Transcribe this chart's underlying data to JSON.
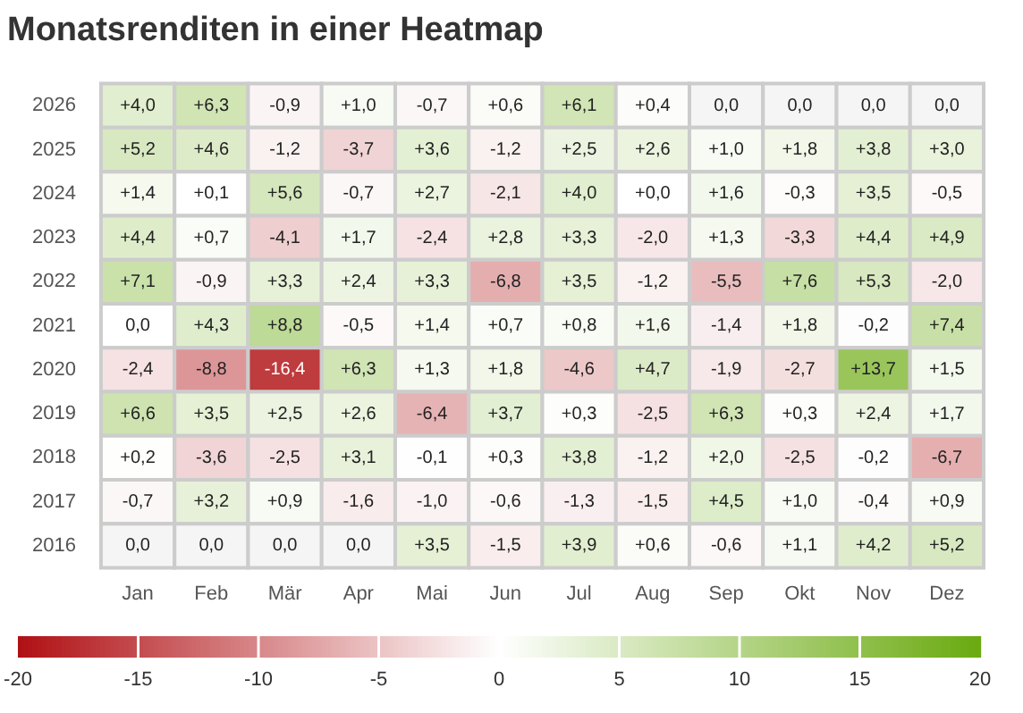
{
  "chart_data": {
    "type": "heatmap",
    "title": "Monatsrenditen in einer Heatmap",
    "categories": [
      "Jan",
      "Feb",
      "Mär",
      "Apr",
      "Mai",
      "Jun",
      "Jul",
      "Aug",
      "Sep",
      "Okt",
      "Nov",
      "Dez"
    ],
    "y_categories": [
      "2026",
      "2025",
      "2024",
      "2023",
      "2022",
      "2021",
      "2020",
      "2019",
      "2018",
      "2017",
      "2016"
    ],
    "cells": [
      [
        4.0,
        6.3,
        -0.9,
        1.0,
        -0.7,
        0.6,
        6.1,
        0.4,
        null,
        null,
        null,
        null
      ],
      [
        5.2,
        4.6,
        -1.2,
        -3.7,
        3.6,
        -1.2,
        2.5,
        2.6,
        1.0,
        1.8,
        3.8,
        3.0
      ],
      [
        1.4,
        0.1,
        5.6,
        -0.7,
        2.7,
        -2.1,
        4.0,
        0.0,
        1.6,
        -0.3,
        3.5,
        -0.5
      ],
      [
        4.4,
        0.7,
        -4.1,
        1.7,
        -2.4,
        2.8,
        3.3,
        -2.0,
        1.3,
        -3.3,
        4.4,
        4.9
      ],
      [
        7.1,
        -0.9,
        3.3,
        2.4,
        3.3,
        -6.8,
        3.5,
        -1.2,
        -5.5,
        7.6,
        5.3,
        -2.0
      ],
      [
        0.0,
        4.3,
        8.8,
        -0.5,
        1.4,
        0.7,
        0.8,
        1.6,
        -1.4,
        1.8,
        -0.2,
        7.4
      ],
      [
        -2.4,
        -8.8,
        -16.4,
        6.3,
        1.3,
        1.8,
        -4.6,
        4.7,
        -1.9,
        -2.7,
        13.7,
        1.5
      ],
      [
        6.6,
        3.5,
        2.5,
        2.6,
        -6.4,
        3.7,
        0.3,
        -2.5,
        6.3,
        0.3,
        2.4,
        1.7
      ],
      [
        0.2,
        -3.6,
        -2.5,
        3.1,
        -0.1,
        0.3,
        3.8,
        -1.2,
        2.0,
        -2.5,
        -0.2,
        -6.7
      ],
      [
        -0.7,
        3.2,
        0.9,
        -1.6,
        -1.0,
        -0.6,
        -1.3,
        -1.5,
        4.5,
        1.0,
        -0.4,
        0.9
      ],
      [
        null,
        null,
        null,
        null,
        3.5,
        -1.5,
        3.9,
        0.6,
        -0.6,
        1.1,
        4.2,
        5.2
      ]
    ],
    "cell_labels": [
      [
        "+4,0",
        "+6,3",
        "-0,9",
        "+1,0",
        "-0,7",
        "+0,6",
        "+6,1",
        "+0,4",
        "0,0",
        "0,0",
        "0,0",
        "0,0"
      ],
      [
        "+5,2",
        "+4,6",
        "-1,2",
        "-3,7",
        "+3,6",
        "-1,2",
        "+2,5",
        "+2,6",
        "+1,0",
        "+1,8",
        "+3,8",
        "+3,0"
      ],
      [
        "+1,4",
        "+0,1",
        "+5,6",
        "-0,7",
        "+2,7",
        "-2,1",
        "+4,0",
        "+0,0",
        "+1,6",
        "-0,3",
        "+3,5",
        "-0,5"
      ],
      [
        "+4,4",
        "+0,7",
        "-4,1",
        "+1,7",
        "-2,4",
        "+2,8",
        "+3,3",
        "-2,0",
        "+1,3",
        "-3,3",
        "+4,4",
        "+4,9"
      ],
      [
        "+7,1",
        "-0,9",
        "+3,3",
        "+2,4",
        "+3,3",
        "-6,8",
        "+3,5",
        "-1,2",
        "-5,5",
        "+7,6",
        "+5,3",
        "-2,0"
      ],
      [
        "0,0",
        "+4,3",
        "+8,8",
        "-0,5",
        "+1,4",
        "+0,7",
        "+0,8",
        "+1,6",
        "-1,4",
        "+1,8",
        "-0,2",
        "+7,4"
      ],
      [
        "-2,4",
        "-8,8",
        "-16,4",
        "+6,3",
        "+1,3",
        "+1,8",
        "-4,6",
        "+4,7",
        "-1,9",
        "-2,7",
        "+13,7",
        "+1,5"
      ],
      [
        "+6,6",
        "+3,5",
        "+2,5",
        "+2,6",
        "-6,4",
        "+3,7",
        "+0,3",
        "-2,5",
        "+6,3",
        "+0,3",
        "+2,4",
        "+1,7"
      ],
      [
        "+0,2",
        "-3,6",
        "-2,5",
        "+3,1",
        "-0,1",
        "+0,3",
        "+3,8",
        "-1,2",
        "+2,0",
        "-2,5",
        "-0,2",
        "-6,7"
      ],
      [
        "-0,7",
        "+3,2",
        "+0,9",
        "-1,6",
        "-1,0",
        "-0,6",
        "-1,3",
        "-1,5",
        "+4,5",
        "+1,0",
        "-0,4",
        "+0,9"
      ],
      [
        "0,0",
        "0,0",
        "0,0",
        "0,0",
        "+3,5",
        "-1,5",
        "+3,9",
        "+0,6",
        "-0,6",
        "+1,1",
        "+4,2",
        "+5,2"
      ]
    ],
    "clim": [
      -20,
      20
    ],
    "cticks": [
      -20,
      -15,
      -10,
      -5,
      0,
      5,
      10,
      15,
      20
    ]
  }
}
